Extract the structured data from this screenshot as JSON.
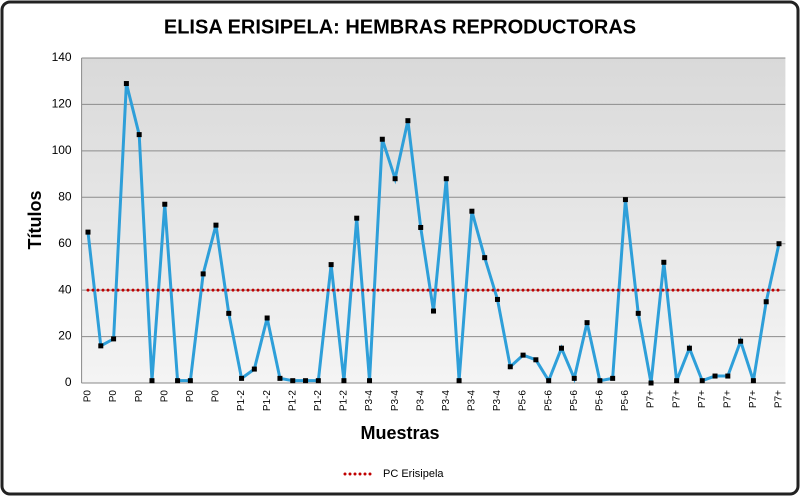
{
  "chart_data": {
    "type": "line",
    "title": "ELISA ERISIPELA: HEMBRAS REPRODUCTORAS",
    "x_label": "Muestras",
    "y_label": "Títulos",
    "categories": [
      "P0",
      null,
      "P0",
      null,
      "P0",
      null,
      "P0",
      null,
      "P0",
      null,
      "P0",
      null,
      "P1-2",
      null,
      "P1-2",
      null,
      "P1-2",
      null,
      "P1-2",
      null,
      "P1-2",
      null,
      "P3-4",
      null,
      "P3-4",
      null,
      "P3-4",
      null,
      "P3-4",
      null,
      "P3-4",
      null,
      "P3-4",
      null,
      "P5-6",
      null,
      "P5-6",
      null,
      "P5-6",
      null,
      "P5-6",
      null,
      "P5-6",
      null,
      "P7+",
      null,
      "P7+",
      null,
      "P7+",
      null,
      "P7+",
      null,
      "P7+",
      null,
      "P7+"
    ],
    "series": [
      {
        "color": "#2e9fd9",
        "values": [
          65,
          16,
          19,
          129,
          107,
          1,
          77,
          1,
          1,
          47,
          68,
          30,
          2,
          6,
          28,
          2,
          1,
          1,
          1,
          51,
          1,
          71,
          1,
          105,
          88,
          113,
          67,
          31,
          88,
          1,
          74,
          54,
          36,
          7,
          12,
          10,
          1,
          15,
          2,
          26,
          1,
          2,
          79,
          30,
          0,
          52,
          1,
          15,
          1,
          3,
          3,
          18,
          1,
          35,
          60
        ]
      },
      {
        "name": "PC Erisipela",
        "color": "#c00000",
        "values": [
          40,
          40,
          40,
          40,
          40,
          40,
          40,
          40,
          40,
          40,
          40,
          40,
          40,
          40,
          40,
          40,
          40,
          40,
          40,
          40,
          40,
          40,
          40,
          40,
          40,
          40,
          40,
          40,
          40,
          40,
          40,
          40,
          40,
          40,
          40,
          40,
          40,
          40,
          40,
          40,
          40,
          40,
          40,
          40,
          40,
          40,
          40,
          40,
          40,
          40,
          40,
          40,
          40,
          40,
          40
        ]
      }
    ],
    "ylim": [
      0,
      140
    ],
    "yticks": [
      0,
      20,
      40,
      60,
      80,
      100,
      120,
      140
    ],
    "grid": true,
    "legend": "bottom"
  }
}
